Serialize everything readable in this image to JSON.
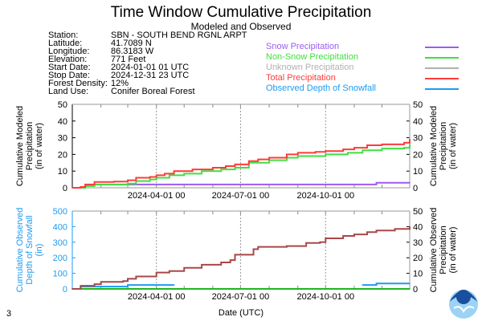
{
  "title": "Time Window Cumulative Precipitation",
  "subtitle": "Modeled and Observed",
  "info": [
    {
      "label": "Station:",
      "value": "SBN - SOUTH BEND RGNL ARPT"
    },
    {
      "label": "Latitude:",
      "value": "41.7089 N"
    },
    {
      "label": "Longitude:",
      "value": "86.3183 W"
    },
    {
      "label": "Elevation:",
      "value": "771 Feet"
    },
    {
      "label": "Start Date:",
      "value": "2024-01-01 01 UTC"
    },
    {
      "label": "Stop Date:",
      "value": "2024-12-31 23 UTC"
    },
    {
      "label": "Forest Density:",
      "value": "12%"
    },
    {
      "label": "Land Use:",
      "value": "Conifer Boreal Forest"
    }
  ],
  "legend": [
    {
      "label": "Snow Precipitation",
      "color": "#9b5cf0"
    },
    {
      "label": "Non-Snow Precipitation",
      "color": "#3ee03e"
    },
    {
      "label": "Unknown Precipitation",
      "color": "#b0b0b0"
    },
    {
      "label": "Total Precipitation",
      "color": "#ff3b3b"
    },
    {
      "label": "Observed Depth of Snowfall",
      "color": "#1e9bf0"
    }
  ],
  "page_number": "3",
  "xlabel": "Date (UTC)",
  "chart_data": [
    {
      "type": "line",
      "xlim": [
        "2024-01-01",
        "2024-12-31"
      ],
      "xticks": [
        "2024-04-01 00",
        "2024-07-01 00",
        "2024-10-01 00"
      ],
      "xtick_dates": [
        "2024-04-01",
        "2024-07-01",
        "2024-10-01"
      ],
      "ylabel": "Cumulative Modeled Precipitation (in of water)",
      "ylabel_lines": [
        "Cumulative Modeled",
        "Precipitation",
        "(in of water)"
      ],
      "ylim": [
        0,
        50
      ],
      "yticks": [
        "0",
        "10",
        "20",
        "30",
        "40",
        "50"
      ],
      "right_ylabel_lines": [
        "Cumulative Modeled",
        "Precipitation",
        "(in of water)"
      ],
      "right_ylim": [
        0,
        50
      ],
      "right_yticks": [
        "0",
        "10",
        "20",
        "30",
        "40",
        "50"
      ],
      "grid": "vertical dashed",
      "series": [
        {
          "name": "Total Precipitation",
          "color": "#ff3b3b",
          "axis": "left",
          "x": [
            "2024-01-01",
            "2024-01-10",
            "2024-01-15",
            "2024-01-25",
            "2024-02-15",
            "2024-03-01",
            "2024-03-10",
            "2024-03-25",
            "2024-04-01",
            "2024-04-10",
            "2024-04-20",
            "2024-05-10",
            "2024-06-01",
            "2024-06-15",
            "2024-06-25",
            "2024-07-10",
            "2024-07-20",
            "2024-08-01",
            "2024-08-20",
            "2024-09-01",
            "2024-09-20",
            "2024-10-01",
            "2024-10-20",
            "2024-11-01",
            "2024-11-15",
            "2024-12-01",
            "2024-12-25",
            "2024-12-31"
          ],
          "y": [
            0,
            0.5,
            2,
            3.5,
            3.7,
            4.5,
            6,
            6.5,
            7.5,
            8.5,
            10,
            11,
            12,
            13,
            14,
            16,
            17,
            18,
            20,
            21,
            21.5,
            22,
            23,
            24,
            25.5,
            26,
            27,
            29
          ]
        },
        {
          "name": "Non-Snow Precipitation",
          "color": "#3ee03e",
          "axis": "left",
          "x": [
            "2024-01-01",
            "2024-01-15",
            "2024-01-25",
            "2024-03-01",
            "2024-03-10",
            "2024-03-25",
            "2024-04-01",
            "2024-04-15",
            "2024-05-01",
            "2024-05-20",
            "2024-06-10",
            "2024-06-25",
            "2024-07-10",
            "2024-08-01",
            "2024-08-20",
            "2024-09-01",
            "2024-10-01",
            "2024-10-25",
            "2024-11-10",
            "2024-12-01",
            "2024-12-25",
            "2024-12-31"
          ],
          "y": [
            0,
            1,
            2,
            2.5,
            4,
            5,
            6,
            7.5,
            8.5,
            10,
            11,
            12,
            15,
            16.5,
            18,
            19,
            20,
            21,
            22.5,
            23.5,
            24,
            26
          ]
        },
        {
          "name": "Snow Precipitation",
          "color": "#9b5cf0",
          "axis": "left",
          "x": [
            "2024-01-01",
            "2024-01-15",
            "2024-01-25",
            "2024-11-20",
            "2024-11-25",
            "2024-12-31"
          ],
          "y": [
            0,
            1.5,
            2,
            2,
            3,
            3
          ]
        }
      ]
    },
    {
      "type": "line",
      "xlim": [
        "2024-01-01",
        "2024-12-31"
      ],
      "xticks": [
        "2024-04-01 00",
        "2024-07-01 00",
        "2024-10-01 00"
      ],
      "xtick_dates": [
        "2024-04-01",
        "2024-07-01",
        "2024-10-01"
      ],
      "xlabel": "Date (UTC)",
      "ylabel_lines": [
        "Cumulative Observed",
        "Depth of Snowfall",
        "(in)"
      ],
      "ylim": [
        0,
        500
      ],
      "yticks": [
        "0",
        "100",
        "200",
        "300",
        "400",
        "500"
      ],
      "right_ylabel_lines": [
        "Cumulative Observed",
        "Precipitation",
        "(in of water)"
      ],
      "right_ylim": [
        0,
        50
      ],
      "right_yticks": [
        "0",
        "10",
        "20",
        "30",
        "40",
        "50"
      ],
      "grid": "vertical dashed",
      "series": [
        {
          "color": "#a84848",
          "axis": "right",
          "x": [
            "2024-01-01",
            "2024-01-10",
            "2024-01-25",
            "2024-02-01",
            "2024-02-25",
            "2024-03-01",
            "2024-03-10",
            "2024-03-25",
            "2024-04-01",
            "2024-04-15",
            "2024-05-01",
            "2024-05-20",
            "2024-06-10",
            "2024-06-20",
            "2024-06-25",
            "2024-07-10",
            "2024-07-15",
            "2024-07-20",
            "2024-08-20",
            "2024-09-10",
            "2024-09-25",
            "2024-10-01",
            "2024-10-20",
            "2024-11-01",
            "2024-11-15",
            "2024-11-25",
            "2024-12-15",
            "2024-12-31"
          ],
          "y": [
            0,
            2,
            3,
            4.5,
            5,
            6.5,
            8,
            8,
            10.5,
            11.5,
            13.5,
            15.5,
            17,
            18.5,
            22,
            22,
            25.5,
            27,
            27.5,
            29.5,
            30,
            32.5,
            34,
            35,
            36.5,
            37.5,
            38.5,
            40
          ]
        },
        {
          "name": "Observed Depth of Snowfall",
          "color": "#1e9bf0",
          "axis": "left",
          "x": [
            "2024-01-01",
            "2024-01-10",
            "2024-02-01",
            "2024-03-01",
            "2024-04-01",
            "2024-04-20",
            "2024-04-21",
            "2024-11-10",
            "2024-11-25",
            "2024-12-31"
          ],
          "y": [
            0,
            15,
            15,
            25,
            25,
            25,
            null,
            25,
            35,
            35
          ]
        },
        {
          "color": "#1fb51f",
          "axis": "left",
          "x": [
            "2024-01-01",
            "2024-12-31"
          ],
          "y": [
            0,
            0
          ]
        }
      ]
    }
  ]
}
